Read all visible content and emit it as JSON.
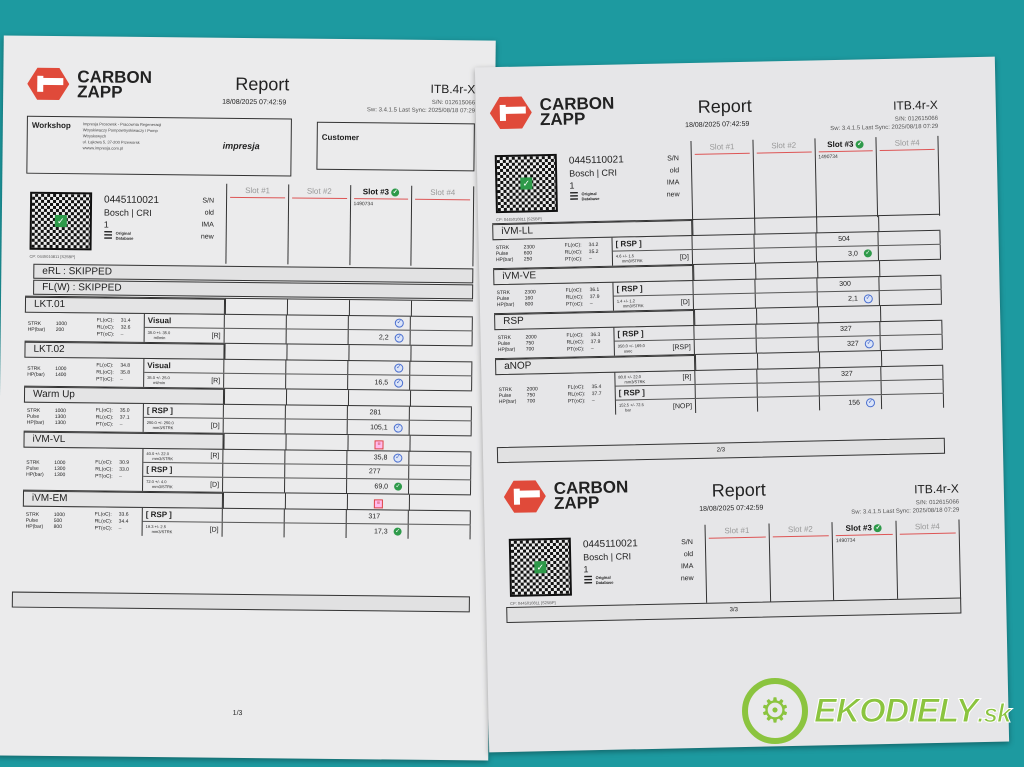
{
  "brand": {
    "line1": "CARBON",
    "line2": "ZAPP",
    "color": "#e04a3a"
  },
  "header": {
    "title": "Report",
    "date": "18/08/2025 07:42:59",
    "model": "ITB.4r-X",
    "sn": "S/N: 012615066",
    "sw": "Sw: 3.4.1.5 Last Sync: 2025/08/18 07:29"
  },
  "workshop": {
    "label": "Workshop",
    "lines": [
      "Impresja Prosowsk - Pracownia Regeneracji",
      "Wtryskiwaczy Pompowtryskiwaczy i Pomp",
      "Wtryskowych",
      "ul. Łąkowa 5, 37-200 Przeworsk",
      "wwww.impresja.com.pl"
    ],
    "logo_text": "impresja"
  },
  "customer": {
    "label": "Customer"
  },
  "component": {
    "number": "0445110021",
    "make": "Bosch | CRI",
    "index": "1",
    "db_line1": "Original",
    "db_line2": "Database",
    "cp": "CP: 0445010811 [S25BP]",
    "keys": [
      "S/N",
      "old",
      "IMA",
      "new"
    ]
  },
  "slots": [
    {
      "label": "Slot #1"
    },
    {
      "label": "Slot #2"
    },
    {
      "label": "Slot #3",
      "active": true,
      "serial": "1490734"
    },
    {
      "label": "Slot #4"
    }
  ],
  "skipped": [
    "eRL : SKIPPED",
    "FL(W) : SKIPPED"
  ],
  "temp_labels": {
    "fl": "FL(oC):",
    "rl": "RL(oC):",
    "pt": "PT(oC):"
  },
  "pages": [
    {
      "page": "1/3",
      "tests": [
        {
          "name": "LKT.01",
          "params": [
            [
              "STRK",
              "1000"
            ],
            [
              "HP(bar)",
              "200"
            ]
          ],
          "fl": "31.4",
          "rl": "32.6",
          "pt": "–",
          "rows": [
            {
              "label": "Visual",
              "icon": "check-outline"
            },
            {
              "spec": "35.0 +/- 35.0",
              "unit": "ml/min",
              "mode": "[R]",
              "value": "2,2",
              "icon": "check-outline"
            }
          ]
        },
        {
          "name": "LKT.02",
          "params": [
            [
              "STRK",
              "1000"
            ],
            [
              "HP(bar)",
              "1400"
            ]
          ],
          "fl": "34.8",
          "rl": "35.8",
          "pt": "–",
          "rows": [
            {
              "label": "Visual",
              "icon": "check-outline"
            },
            {
              "spec": "35.0 +/- 25.0",
              "unit": "ml/min",
              "mode": "[R]",
              "value": "16,5",
              "icon": "check-outline"
            }
          ]
        },
        {
          "name": "Warm Up",
          "params": [
            [
              "STRK",
              "1000"
            ],
            [
              "Pulse",
              "1300"
            ],
            [
              "HP(bar)",
              "1300"
            ]
          ],
          "fl": "35.0",
          "rl": "37.1",
          "pt": "–",
          "rows": [
            {
              "label": "[ RSP ]",
              "value": "281",
              "center": true
            },
            {
              "spec": "250.0 +/- 250.0",
              "unit": "mm3/STRK",
              "mode": "[D]",
              "value": "105,1",
              "icon": "check-outline"
            }
          ]
        },
        {
          "name": "iVM-VL",
          "header_icon": "chart-warning",
          "params": [
            [
              "STRK",
              "1000"
            ],
            [
              "Pulse",
              "1300"
            ],
            [
              "HP(bar)",
              "1300"
            ]
          ],
          "fl": "30.9",
          "rl": "33.0",
          "pt": "–",
          "rows": [
            {
              "spec": "40.0 +/- 22.0",
              "unit": "mm3/STRK",
              "mode": "[R]",
              "value": "35,8",
              "icon": "check-outline"
            },
            {
              "label": "[ RSP ]",
              "value": "277",
              "center": true
            },
            {
              "spec": "72.0 +/- 4.0",
              "unit": "mm3/STRK",
              "mode": "[D]",
              "value": "69,0",
              "icon": "check-filled"
            }
          ]
        },
        {
          "name": "iVM-EM",
          "header_icon": "chart-warning",
          "params": [
            [
              "STRK",
              "1000"
            ],
            [
              "Pulse",
              "500"
            ],
            [
              "HP(bar)",
              "800"
            ]
          ],
          "fl": "33.6",
          "rl": "34.4",
          "pt": "–",
          "rows": [
            {
              "label": "[ RSP ]",
              "value": "317",
              "center": true
            },
            {
              "spec": "19.3 +/- 2.5",
              "unit": "mm3/STRK",
              "mode": "[D]",
              "value": "17,3",
              "icon": "check-filled"
            }
          ]
        }
      ]
    },
    {
      "page": "2/3",
      "tests": [
        {
          "name": "iVM-LL",
          "params": [
            [
              "STRK",
              "2300"
            ],
            [
              "Pulse",
              "600"
            ],
            [
              "HP(bar)",
              "250"
            ]
          ],
          "fl": "34.2",
          "rl": "35.2",
          "pt": "–",
          "rows": [
            {
              "label": "[ RSP ]",
              "value": "504",
              "center": true
            },
            {
              "spec": "4.6 +/- 1.5",
              "unit": "mm3/STRK",
              "mode": "[D]",
              "value": "3,0",
              "icon": "check-filled"
            }
          ]
        },
        {
          "name": "iVM-VE",
          "params": [
            [
              "STRK",
              "2300"
            ],
            [
              "Pulse",
              "160"
            ],
            [
              "HP(bar)",
              "800"
            ]
          ],
          "fl": "36.1",
          "rl": "37.9",
          "pt": "–",
          "rows": [
            {
              "label": "[ RSP ]",
              "value": "300",
              "center": true
            },
            {
              "spec": "1.4 +/- 1.2",
              "unit": "mm3/STRK",
              "mode": "[D]",
              "value": "2,1",
              "icon": "check-outline"
            }
          ]
        },
        {
          "name": "RSP",
          "params": [
            [
              "STRK",
              "2000"
            ],
            [
              "Pulse",
              "750"
            ],
            [
              "HP(bar)",
              "700"
            ]
          ],
          "fl": "36.3",
          "rl": "37.9",
          "pt": "–",
          "rows": [
            {
              "label": "[ RSP ]",
              "value": "327",
              "center": true
            },
            {
              "spec": "350.0 +/- 169.0",
              "unit": "usec",
              "mode": "[RSP]",
              "value": "327",
              "icon": "check-outline"
            }
          ]
        },
        {
          "name": "aNOP",
          "params": [
            [
              "STRK",
              "2000"
            ],
            [
              "Pulse",
              "750"
            ],
            [
              "HP(bar)",
              "700"
            ]
          ],
          "fl": "35.4",
          "rl": "37.7",
          "pt": "–",
          "rows": [
            {
              "spec": "80.0 +/- 22.0",
              "unit": "mm3/STRK",
              "mode": "[R]",
              "value": "327",
              "center": true
            },
            {
              "label": "[ RSP ]"
            },
            {
              "spec": "152.5 +/- 72.5",
              "unit": "bar",
              "mode": "[NOP]",
              "value": "156",
              "icon": "check-outline"
            }
          ]
        }
      ]
    },
    {
      "page": "3/3",
      "tests": []
    }
  ],
  "watermark": {
    "text": "EKODIELY",
    "suffix": ".sk",
    "color": "#8bc43f"
  }
}
